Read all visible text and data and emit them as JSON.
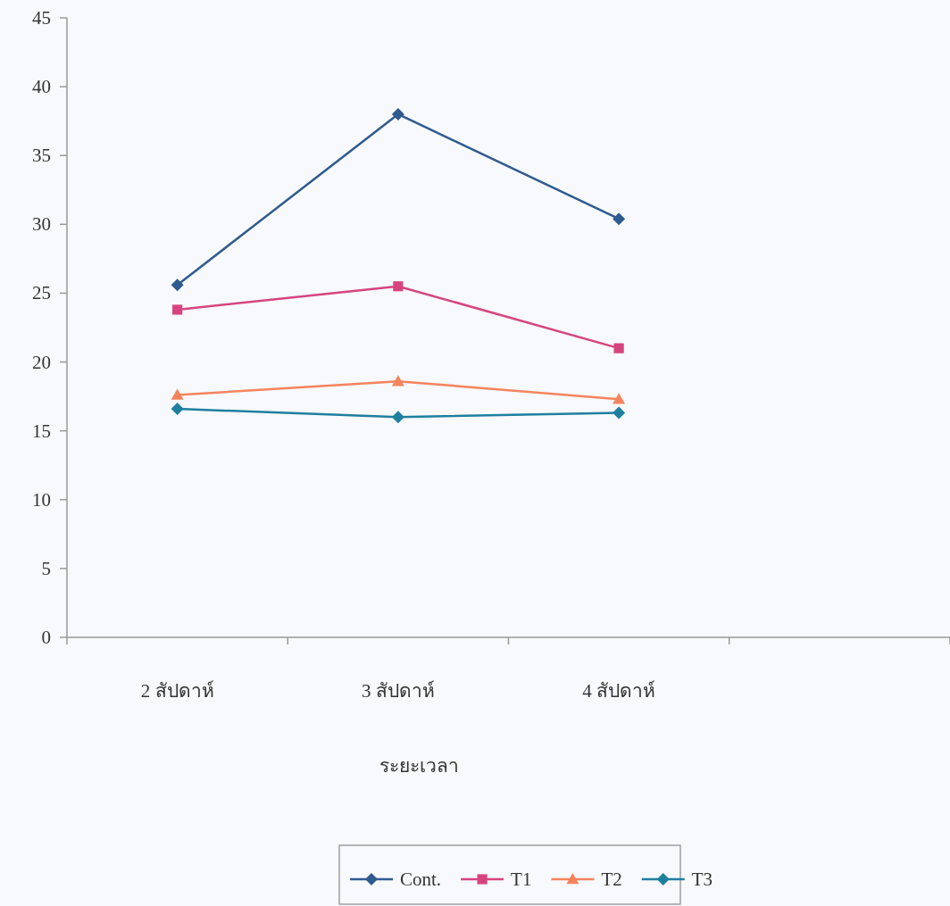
{
  "chart_data": {
    "type": "line",
    "xlabel": "ระยะเวลา",
    "categories": [
      "2 สัปดาห์",
      "3 สัปดาห์",
      "4 สัปดาห์",
      null
    ],
    "series": [
      {
        "name": "Cont.",
        "color": "#2f5a8f",
        "marker": "diamond",
        "values": [
          25.6,
          38.0,
          30.4,
          null
        ]
      },
      {
        "name": "T1",
        "color": "#d6447f",
        "marker": "square",
        "values": [
          23.8,
          25.5,
          21.0,
          null
        ]
      },
      {
        "name": "T2",
        "color": "#f4845c",
        "marker": "triangle",
        "values": [
          17.6,
          18.6,
          17.3,
          null
        ]
      },
      {
        "name": "T3",
        "color": "#1f7f9f",
        "marker": "diamond",
        "values": [
          16.6,
          16.0,
          16.3,
          null
        ]
      }
    ],
    "ylim": [
      0,
      45
    ],
    "yticks": [
      0,
      5,
      10,
      15,
      20,
      25,
      30,
      35,
      40,
      45
    ],
    "grid": false,
    "legend": "bottom",
    "line_style": "solid"
  }
}
